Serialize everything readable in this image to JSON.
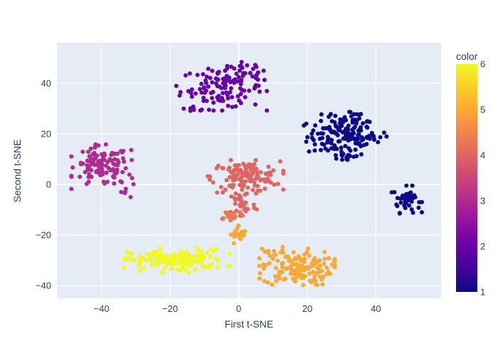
{
  "chart_data": {
    "type": "scatter",
    "title": "",
    "xlabel": "First t-SNE",
    "ylabel": "Second t-SNE",
    "xlim": [
      -53,
      59
    ],
    "ylim": [
      -45,
      56
    ],
    "xticks": [
      -40,
      -20,
      0,
      20,
      40
    ],
    "yticks": [
      -40,
      -20,
      0,
      20,
      40
    ],
    "grid": true,
    "colorbar": {
      "title": "color",
      "min": 1,
      "max": 6,
      "ticks": [
        1,
        2,
        3,
        4,
        5,
        6
      ],
      "colorscale": [
        "#0d0887",
        "#46039f",
        "#7201a8",
        "#9c179e",
        "#bd3786",
        "#d8576b",
        "#ed7953",
        "#fb9f3a",
        "#fdca26",
        "#f0f921"
      ]
    },
    "clusters": [
      {
        "color_value": 1,
        "center": [
          30,
          19
        ],
        "spread": [
          5,
          4
        ],
        "n": 130
      },
      {
        "color_value": 1,
        "center": [
          33,
          27
        ],
        "spread": [
          2,
          1.5
        ],
        "n": 15
      },
      {
        "color_value": 1,
        "center": [
          32,
          11
        ],
        "spread": [
          2,
          1
        ],
        "n": 12
      },
      {
        "color_value": 1,
        "center": [
          38,
          19
        ],
        "spread": [
          3,
          1
        ],
        "n": 15
      },
      {
        "color_value": 1,
        "center": [
          49,
          -6
        ],
        "spread": [
          2,
          2.5
        ],
        "n": 45
      },
      {
        "color_value": 2,
        "center": [
          -5,
          38
        ],
        "spread": [
          6,
          4
        ],
        "n": 110
      },
      {
        "color_value": 2,
        "center": [
          2,
          44
        ],
        "spread": [
          3,
          3
        ],
        "n": 25
      },
      {
        "color_value": 2,
        "center": [
          -14,
          30
        ],
        "spread": [
          1,
          0.8
        ],
        "n": 6
      },
      {
        "color_value": 3,
        "center": [
          -40,
          7
        ],
        "spread": [
          4,
          4
        ],
        "n": 110
      },
      {
        "color_value": 3,
        "center": [
          -33,
          4
        ],
        "spread": [
          1.5,
          5
        ],
        "n": 15
      },
      {
        "color_value": 4,
        "center": [
          2,
          3
        ],
        "spread": [
          5,
          3
        ],
        "n": 130
      },
      {
        "color_value": 4,
        "center": [
          1,
          -8
        ],
        "spread": [
          2,
          3
        ],
        "n": 30
      },
      {
        "color_value": 4.3,
        "center": [
          -2,
          -12
        ],
        "spread": [
          2,
          1
        ],
        "n": 18
      },
      {
        "color_value": 5,
        "center": [
          0,
          -20
        ],
        "spread": [
          1.2,
          2
        ],
        "n": 22
      },
      {
        "color_value": 5,
        "center": [
          17,
          -33
        ],
        "spread": [
          5,
          3.5
        ],
        "n": 140
      },
      {
        "color_value": 5,
        "center": [
          10,
          -26
        ],
        "spread": [
          2,
          1
        ],
        "n": 8
      },
      {
        "color_value": 6,
        "center": [
          -18,
          -30
        ],
        "spread": [
          7,
          2.2
        ],
        "n": 150
      },
      {
        "color_value": 6,
        "center": [
          -29,
          -30
        ],
        "spread": [
          1.5,
          1
        ],
        "n": 10
      }
    ]
  }
}
